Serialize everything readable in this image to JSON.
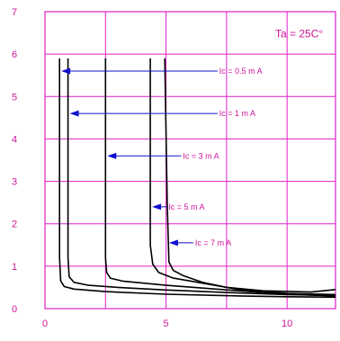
{
  "chart_data": {
    "type": "line",
    "title": "",
    "xlabel": "",
    "ylabel": "",
    "xlim": [
      0,
      12
    ],
    "ylim": [
      0,
      7
    ],
    "x_ticks": [
      0,
      5,
      10
    ],
    "y_ticks": [
      0,
      1,
      2,
      3,
      4,
      5,
      6,
      7
    ],
    "grid": true,
    "condition_label": "Ta = 25C°",
    "colors": {
      "grid": "#e020c8",
      "text": "#d0149a",
      "curve": "#000000",
      "arrow": "#1010d0"
    },
    "series": [
      {
        "label": "Ic = 0.5 m A",
        "x": [
          0.6,
          0.6,
          0.65,
          0.8,
          1.2,
          2.5,
          5,
          8,
          10,
          12
        ],
        "y": [
          5.9,
          1.2,
          0.65,
          0.52,
          0.46,
          0.4,
          0.34,
          0.3,
          0.28,
          0.27
        ]
      },
      {
        "label": "Ic = 1 m A",
        "x": [
          0.95,
          0.95,
          1.0,
          1.2,
          1.8,
          3,
          5,
          8,
          10,
          12
        ],
        "y": [
          5.9,
          1.2,
          0.75,
          0.62,
          0.55,
          0.5,
          0.44,
          0.37,
          0.33,
          0.31
        ]
      },
      {
        "label": "Ic = 3 m A",
        "x": [
          2.5,
          2.5,
          2.55,
          2.7,
          3.2,
          5,
          8,
          10,
          12
        ],
        "y": [
          5.9,
          1.2,
          0.85,
          0.72,
          0.65,
          0.55,
          0.42,
          0.34,
          0.3
        ]
      },
      {
        "label": "Ic = 5 m A",
        "x": [
          4.35,
          4.35,
          4.45,
          4.7,
          5.3,
          6.5,
          8,
          10,
          12
        ],
        "y": [
          5.9,
          1.5,
          1.05,
          0.85,
          0.72,
          0.6,
          0.45,
          0.36,
          0.33
        ]
      },
      {
        "label": "Ic = 7 m A",
        "x": [
          4.95,
          5.05,
          5.12,
          5.3,
          5.7,
          6.5,
          7.5,
          9,
          11,
          12
        ],
        "y": [
          5.9,
          2.5,
          1.1,
          0.9,
          0.78,
          0.62,
          0.5,
          0.42,
          0.39,
          0.45
        ]
      }
    ],
    "annotations": [
      {
        "text": "Ic = 0.5 m A",
        "point": [
          0.6,
          5.6
        ],
        "label_x": 7.2
      },
      {
        "text": "Ic = 1 m A",
        "point": [
          0.95,
          4.6
        ],
        "label_x": 7.2
      },
      {
        "text": "Ic = 3 m A",
        "point": [
          2.5,
          3.6
        ],
        "label_x": 5.7
      },
      {
        "text": "Ic = 5 m A",
        "point": [
          4.35,
          2.4
        ],
        "label_x": 5.1
      },
      {
        "text": "Ic = 7 m A",
        "point": [
          5.05,
          1.55
        ],
        "label_x": 6.2
      }
    ]
  }
}
